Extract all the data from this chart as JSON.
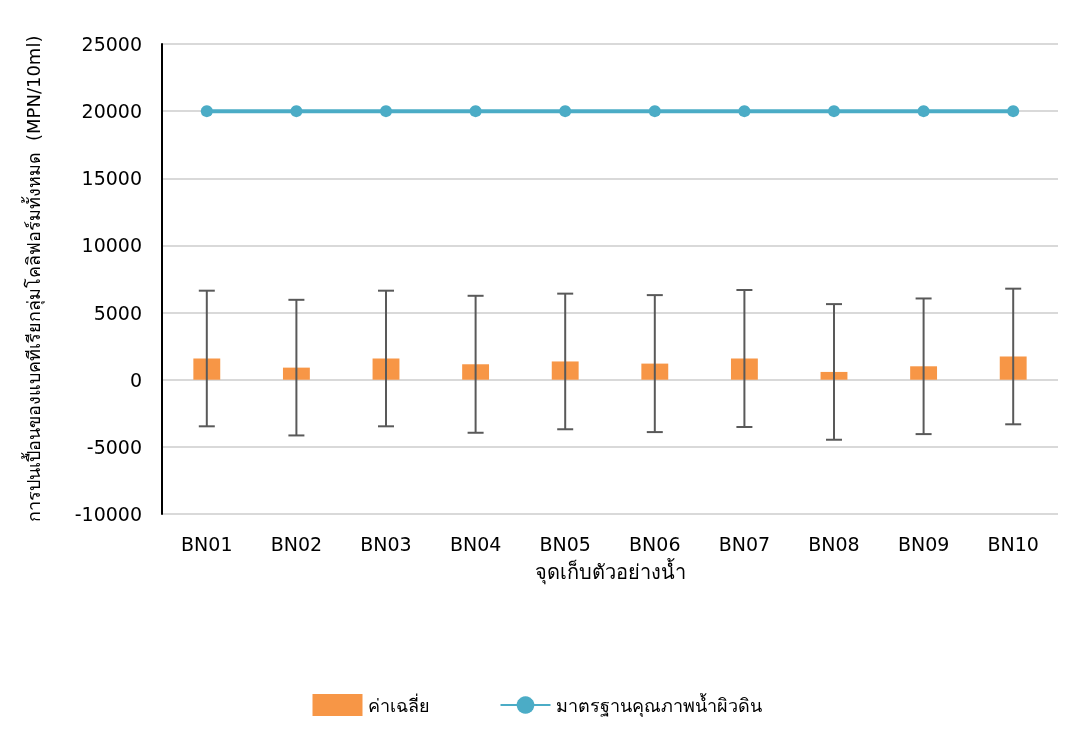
{
  "chart_data": {
    "type": "bar",
    "xlabel": "จุดเก็บตัวอย่างน้ำ",
    "ylabel": "การปนเปื้อนของแบคทีเรียกลุ่มโคลิฟอร์มทั้งหมด  (MPN/10ml)",
    "categories": [
      "BN01",
      "BN02",
      "BN03",
      "BN04",
      "BN05",
      "BN06",
      "BN07",
      "BN08",
      "BN09",
      "BN10"
    ],
    "series": [
      {
        "name": "ค่าเฉลี่ย",
        "color": "#f79646",
        "values": [
          1580,
          900,
          1580,
          1150,
          1360,
          1200,
          1580,
          580,
          1000,
          1730
        ],
        "errors": [
          5050,
          5050,
          5050,
          5100,
          5050,
          5100,
          5100,
          5050,
          5050,
          5050
        ]
      },
      {
        "name": "มาตรฐานคุณภาพน้ำผิวดิน",
        "type": "line",
        "color": "#4bacc6",
        "marker": "circle",
        "values": [
          20000,
          20000,
          20000,
          20000,
          20000,
          20000,
          20000,
          20000,
          20000,
          20000
        ]
      }
    ],
    "ylim": [
      -10000,
      25000
    ],
    "yticks": [
      -10000,
      -5000,
      0,
      5000,
      10000,
      15000,
      20000,
      25000
    ],
    "grid": "y",
    "legend": "bottom"
  }
}
